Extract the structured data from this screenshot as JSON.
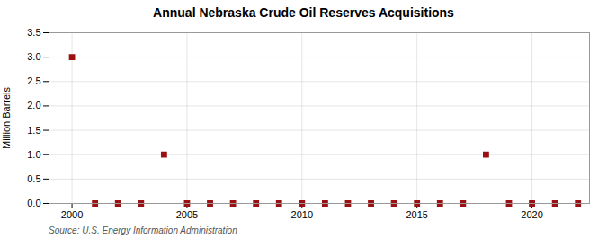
{
  "chart_data": {
    "type": "scatter",
    "title": "Annual Nebraska Crude Oil Reserves Acquisitions",
    "ylabel": "Million Barrels",
    "annotations": [
      "Source: U.S. Energy Information Administration"
    ],
    "x": [
      2000,
      2001,
      2002,
      2003,
      2004,
      2005,
      2006,
      2007,
      2008,
      2009,
      2010,
      2011,
      2012,
      2013,
      2014,
      2015,
      2016,
      2017,
      2018,
      2019,
      2020,
      2021,
      2022
    ],
    "values": [
      3.0,
      0.0,
      0.0,
      0.0,
      1.0,
      0.0,
      0.0,
      0.0,
      0.0,
      0.0,
      0.0,
      0.0,
      0.0,
      0.0,
      0.0,
      0.0,
      0.0,
      0.0,
      1.0,
      0.0,
      0.0,
      0.0,
      0.0
    ],
    "color": "#9b1111",
    "marker": "square",
    "xlim": [
      1999.0,
      2022.5
    ],
    "xticks": [
      2000,
      2005,
      2010,
      2015,
      2020
    ],
    "ylim": [
      0.0,
      3.5
    ],
    "yticks": [
      {
        "value": 0.0,
        "label": "0.0"
      },
      0.5,
      {
        "value": 1.0,
        "label": "1.0"
      },
      1.5,
      {
        "value": 2.0,
        "label": "2.0"
      },
      2.5,
      {
        "value": 3.0,
        "label": "3.0"
      },
      3.5
    ],
    "grid": true
  }
}
